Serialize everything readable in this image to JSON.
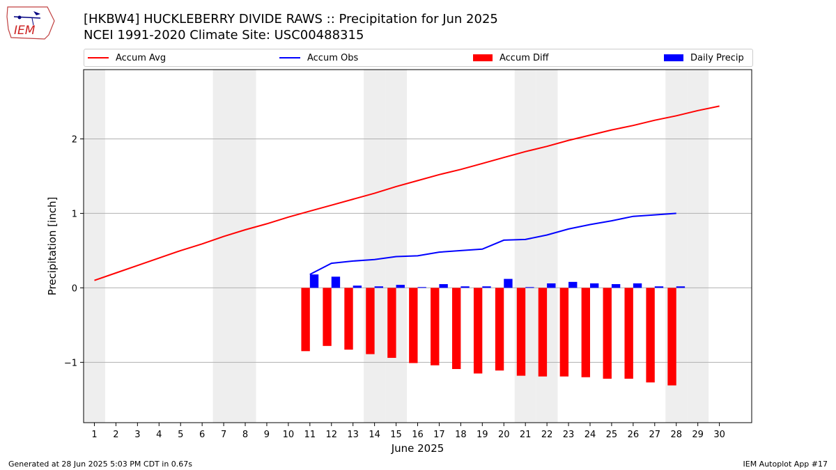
{
  "title_line1": "[HKBW4] HUCKLEBERRY DIVIDE RAWS :: Precipitation for Jun 2025",
  "title_line2": "NCEI 1991-2020 Climate Site: USC00488315",
  "logo_text": "IEM",
  "footer_left": "Generated at 28 Jun 2025 5:03 PM CDT in 0.67s",
  "footer_right": "IEM Autoplot App #17",
  "colors": {
    "avg": "#ff0000",
    "obs": "#0000ff",
    "diff": "#ff0000",
    "daily": "#0000ff",
    "weekend": "#eeeeee",
    "grid": "#b0b0b0"
  },
  "legend": [
    {
      "label": "Accum Avg",
      "kind": "line",
      "color": "#ff0000"
    },
    {
      "label": "Accum Obs",
      "kind": "line",
      "color": "#0000ff"
    },
    {
      "label": "Accum Diff",
      "kind": "box",
      "color": "#ff0000"
    },
    {
      "label": "Daily Precip",
      "kind": "box",
      "color": "#0000ff"
    }
  ],
  "chart_data": {
    "type": "bar",
    "title": "[HKBW4] HUCKLEBERRY DIVIDE RAWS :: Precipitation for Jun 2025",
    "subtitle": "NCEI 1991-2020 Climate Site: USC00488315",
    "xlabel": "June 2025",
    "ylabel": "Precipitation [inch]",
    "xlim": [
      0.5,
      31.5
    ],
    "ylim": [
      -1.81,
      2.93
    ],
    "x_ticks": [
      1,
      2,
      3,
      4,
      5,
      6,
      7,
      8,
      9,
      10,
      11,
      12,
      13,
      14,
      15,
      16,
      17,
      18,
      19,
      20,
      21,
      22,
      23,
      24,
      25,
      26,
      27,
      28,
      29,
      30
    ],
    "y_ticks": [
      -1,
      0,
      1,
      2
    ],
    "y_tick_labels": [
      "−1",
      "0",
      "1",
      "2"
    ],
    "grid": "horizontal",
    "legend_placement": "top",
    "weekend_days": [
      1,
      7,
      8,
      14,
      15,
      21,
      22,
      28,
      29
    ],
    "series": [
      {
        "name": "Accum Avg",
        "type": "line",
        "x": [
          1,
          2,
          3,
          4,
          5,
          6,
          7,
          8,
          9,
          10,
          11,
          12,
          13,
          14,
          15,
          16,
          17,
          18,
          19,
          20,
          21,
          22,
          23,
          24,
          25,
          26,
          27,
          28,
          29,
          30
        ],
        "values": [
          0.1,
          0.2,
          0.3,
          0.4,
          0.5,
          0.59,
          0.69,
          0.78,
          0.86,
          0.95,
          1.03,
          1.11,
          1.19,
          1.27,
          1.36,
          1.44,
          1.52,
          1.59,
          1.67,
          1.75,
          1.83,
          1.9,
          1.98,
          2.05,
          2.12,
          2.18,
          2.25,
          2.31,
          2.38,
          2.44
        ]
      },
      {
        "name": "Accum Obs",
        "type": "line",
        "x": [
          11,
          12,
          13,
          14,
          15,
          16,
          17,
          18,
          19,
          20,
          21,
          22,
          23,
          24,
          25,
          26,
          27,
          28
        ],
        "values": [
          0.18,
          0.33,
          0.36,
          0.38,
          0.42,
          0.43,
          0.48,
          0.5,
          0.52,
          0.64,
          0.65,
          0.71,
          0.79,
          0.85,
          0.9,
          0.96,
          0.98,
          1.0
        ]
      },
      {
        "name": "Accum Diff",
        "type": "bar",
        "x": [
          11,
          12,
          13,
          14,
          15,
          16,
          17,
          18,
          19,
          20,
          21,
          22,
          23,
          24,
          25,
          26,
          27,
          28
        ],
        "values": [
          -0.85,
          -0.78,
          -0.83,
          -0.89,
          -0.94,
          -1.01,
          -1.04,
          -1.09,
          -1.15,
          -1.11,
          -1.18,
          -1.19,
          -1.19,
          -1.2,
          -1.22,
          -1.22,
          -1.27,
          -1.31
        ]
      },
      {
        "name": "Daily Precip",
        "type": "bar",
        "x": [
          11,
          12,
          13,
          14,
          15,
          16,
          17,
          18,
          19,
          20,
          21,
          22,
          23,
          24,
          25,
          26,
          27,
          28
        ],
        "values": [
          0.18,
          0.15,
          0.03,
          0.02,
          0.04,
          0.01,
          0.05,
          0.02,
          0.02,
          0.12,
          0.01,
          0.06,
          0.08,
          0.06,
          0.05,
          0.06,
          0.02,
          0.02
        ]
      }
    ]
  }
}
